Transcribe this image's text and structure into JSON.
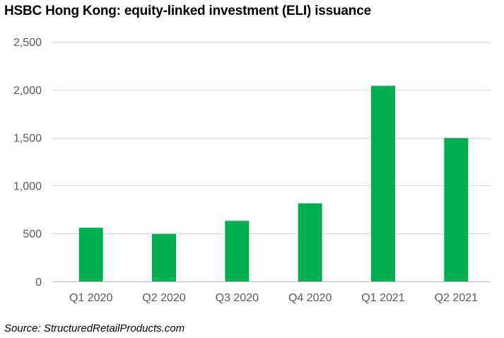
{
  "chart_data": {
    "type": "bar",
    "title": "HSBC Hong Kong: equity-linked investment (ELI) issuance",
    "xlabel": "",
    "ylabel": "",
    "categories": [
      "Q1 2020",
      "Q2 2020",
      "Q3 2020",
      "Q4 2020",
      "Q1 2021",
      "Q2 2021"
    ],
    "values": [
      560,
      495,
      632,
      815,
      2040,
      1495
    ],
    "ylim": [
      0,
      2500
    ],
    "y_ticks": [
      0,
      500,
      1000,
      1500,
      2000,
      2500
    ],
    "y_tick_labels": [
      "0",
      "500",
      "1,000",
      "1,500",
      "2,000",
      "2,500"
    ],
    "grid": true,
    "legend": "none",
    "colors": {
      "bar": "#00b050",
      "grid": "#d9d9d9",
      "axis": "#bfbfbf",
      "tick_text": "#595959"
    }
  },
  "source": "Source: StructuredRetailProducts.com"
}
